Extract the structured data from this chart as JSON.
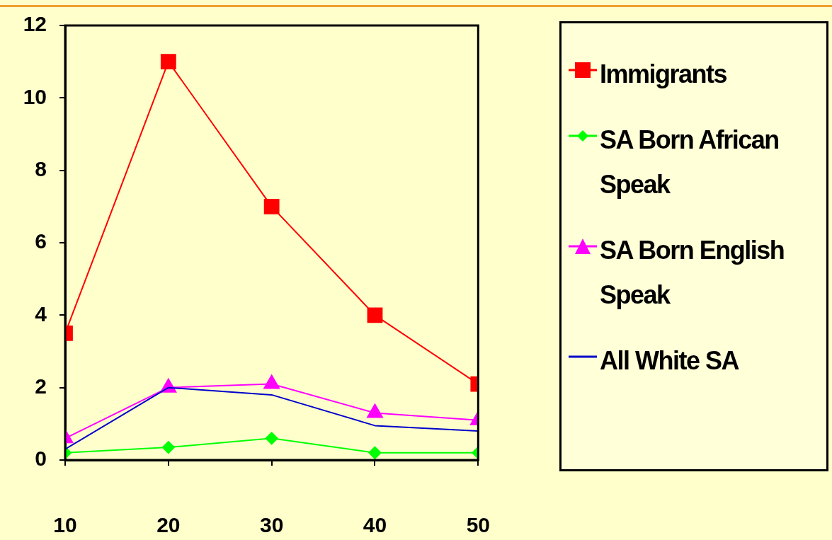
{
  "chart_data": {
    "type": "line",
    "x": [
      10,
      20,
      30,
      40,
      50
    ],
    "xlim": [
      10,
      50
    ],
    "xticks": [
      10,
      20,
      30,
      40,
      50
    ],
    "ylim": [
      0,
      12
    ],
    "yticks": [
      0,
      2,
      4,
      6,
      8,
      10,
      12
    ],
    "grid": false,
    "legend": "right",
    "series": [
      {
        "name": "Immigrants",
        "color": "#ff0000",
        "marker": "square",
        "values": [
          3.5,
          11,
          7,
          4,
          2.1
        ]
      },
      {
        "name": "SA Born African Speak",
        "color": "#00ff00",
        "marker": "diamond",
        "values": [
          0.2,
          0.35,
          0.6,
          0.2,
          0.2
        ]
      },
      {
        "name": "SA Born English Speak",
        "color": "#ff00ff",
        "marker": "triangle",
        "values": [
          0.6,
          2,
          2.1,
          1.3,
          1.1
        ]
      },
      {
        "name": "All White SA",
        "color": "#0000cc",
        "marker": "none",
        "values": [
          0.3,
          2,
          1.8,
          0.95,
          0.8
        ]
      }
    ]
  }
}
